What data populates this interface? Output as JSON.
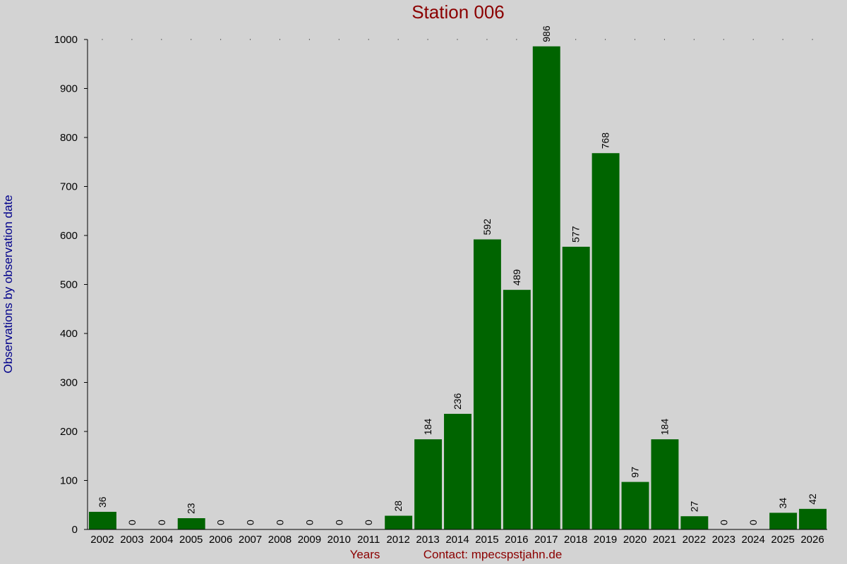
{
  "chart_data": {
    "type": "bar",
    "title": "Station 006",
    "ylabel": "Observations by observation date",
    "xlabel": "Years",
    "contact": "Contact: mpecspstjahn.de",
    "ylim": [
      0,
      1000
    ],
    "yticks": [
      0,
      100,
      200,
      300,
      400,
      500,
      600,
      700,
      800,
      900,
      1000
    ],
    "categories": [
      "2002",
      "2003",
      "2004",
      "2005",
      "2006",
      "2007",
      "2008",
      "2009",
      "2010",
      "2011",
      "2012",
      "2013",
      "2014",
      "2015",
      "2016",
      "2017",
      "2018",
      "2019",
      "2020",
      "2021",
      "2022",
      "2023",
      "2024",
      "2025",
      "2026"
    ],
    "values": [
      36,
      0,
      0,
      23,
      0,
      0,
      0,
      0,
      0,
      0,
      28,
      184,
      236,
      592,
      489,
      986,
      577,
      768,
      97,
      184,
      27,
      0,
      0,
      34,
      42
    ],
    "bar_color": "#006400",
    "background": "#d3d3d3",
    "title_color": "#8b0000",
    "ylabel_color": "#00008b",
    "grid": "dotted at top only",
    "legend": "none"
  }
}
